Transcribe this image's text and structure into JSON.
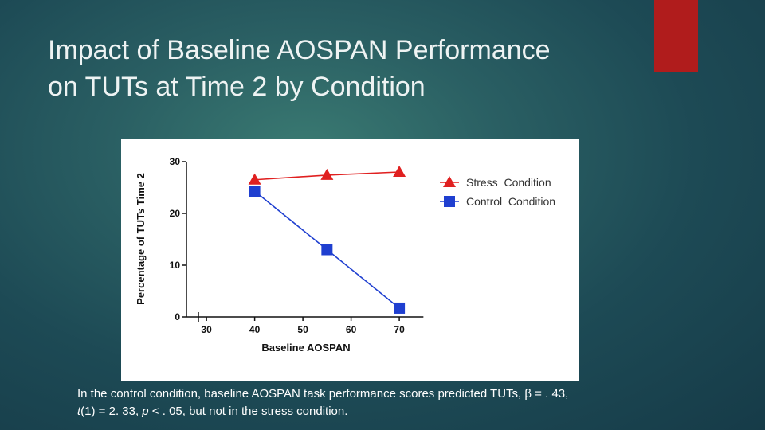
{
  "slide": {
    "title_line1": "Impact of Baseline AOSPAN Performance",
    "title_line2": "on TUTs at Time 2 by Condition",
    "accent_color": "#b01c1c",
    "caption_part1": "In the control condition, baseline AOSPAN task performance scores predicted TUTs, β = . 43,",
    "caption_t": "t",
    "caption_part2": "(1) = 2. 33, ",
    "caption_p": "p",
    "caption_part3": " < . 05, but not in the stress condition."
  },
  "chart_data": {
    "type": "line",
    "xlabel": "Baseline AOSPAN",
    "ylabel": "Percentage of TUTs Time 2",
    "x_ticks": [
      30,
      40,
      50,
      60,
      70
    ],
    "y_ticks": [
      0,
      10,
      20,
      30
    ],
    "xlim": [
      26,
      75
    ],
    "ylim": [
      0,
      30
    ],
    "legend_position": "right",
    "series": [
      {
        "name": "Stress  Condition",
        "color": "#e02020",
        "marker": "triangle",
        "x": [
          40,
          55,
          70
        ],
        "y": [
          26.5,
          27.4,
          28.0
        ]
      },
      {
        "name": "Control  Condition",
        "color": "#1f3fd0",
        "marker": "square",
        "x": [
          40,
          55,
          70
        ],
        "y": [
          24.3,
          13.0,
          1.7
        ]
      }
    ]
  }
}
